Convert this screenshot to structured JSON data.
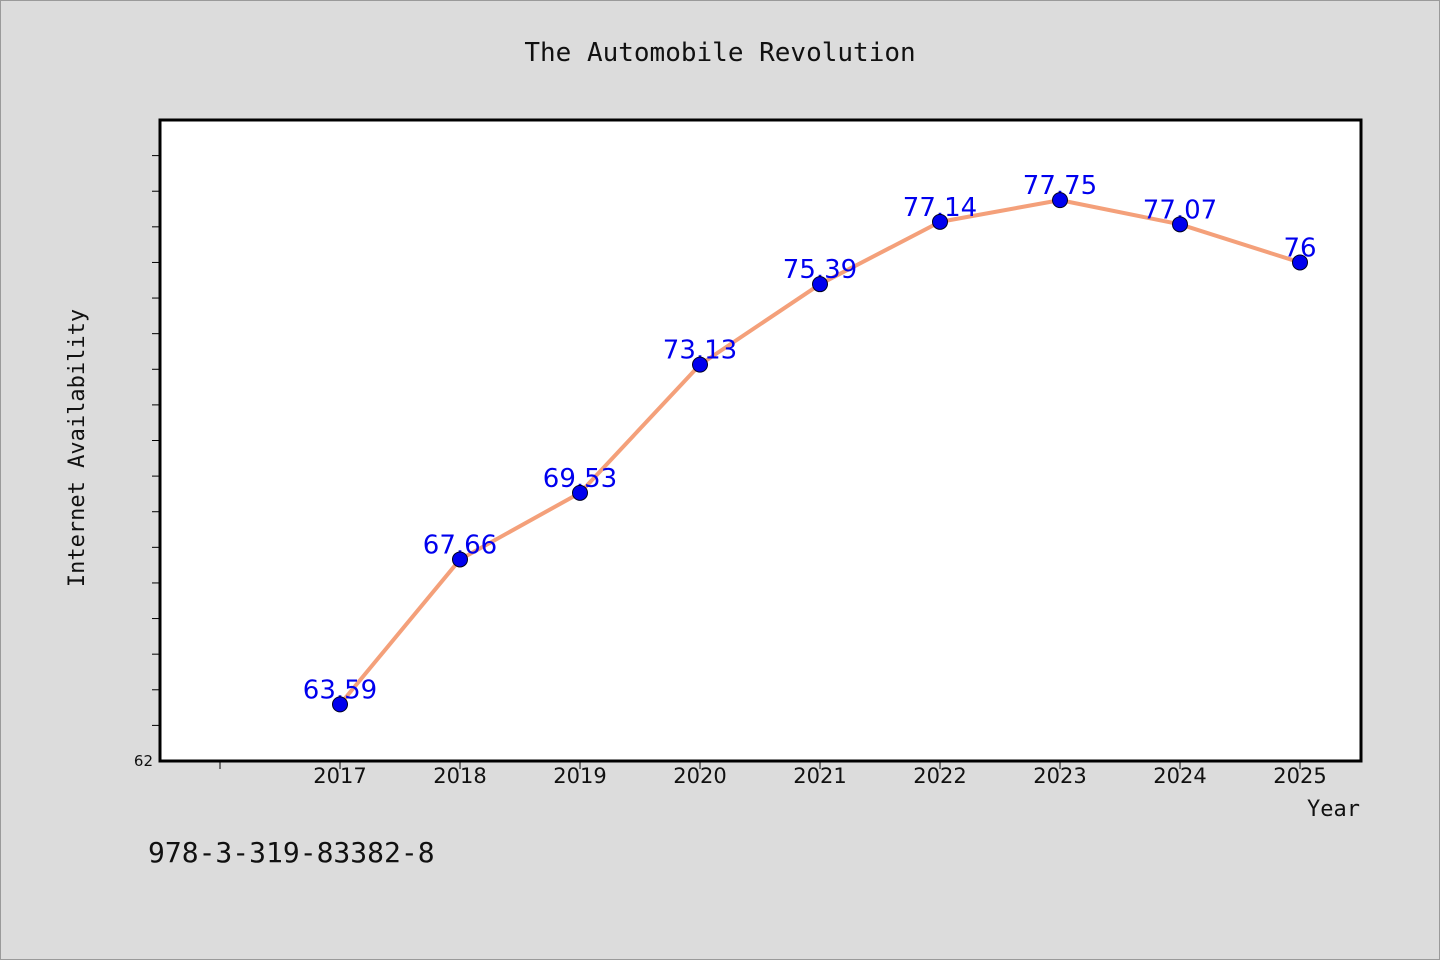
{
  "chart_data": {
    "type": "line",
    "title": "The Automobile Revolution",
    "xlabel": "Year",
    "ylabel": "Internet Availability",
    "categories": [
      "2017",
      "2018",
      "2019",
      "2020",
      "2021",
      "2022",
      "2023",
      "2024",
      "2025"
    ],
    "series": [
      {
        "values": [
          63.59,
          67.66,
          69.53,
          73.13,
          75.39,
          77.14,
          77.75,
          77.07,
          76
        ],
        "data_labels": [
          "63.59",
          "67.66",
          "69.53",
          "73.13",
          "75.39",
          "77.14",
          "77.75",
          "77.07",
          "76"
        ],
        "line_color": "#f4a07a",
        "marker_color": "#0000ee"
      }
    ],
    "ylim": [
      62,
      80
    ],
    "ytick_min_label": "62",
    "grid": false,
    "legend": false
  },
  "footer": {
    "isbn": "978-3-319-83382-8"
  }
}
